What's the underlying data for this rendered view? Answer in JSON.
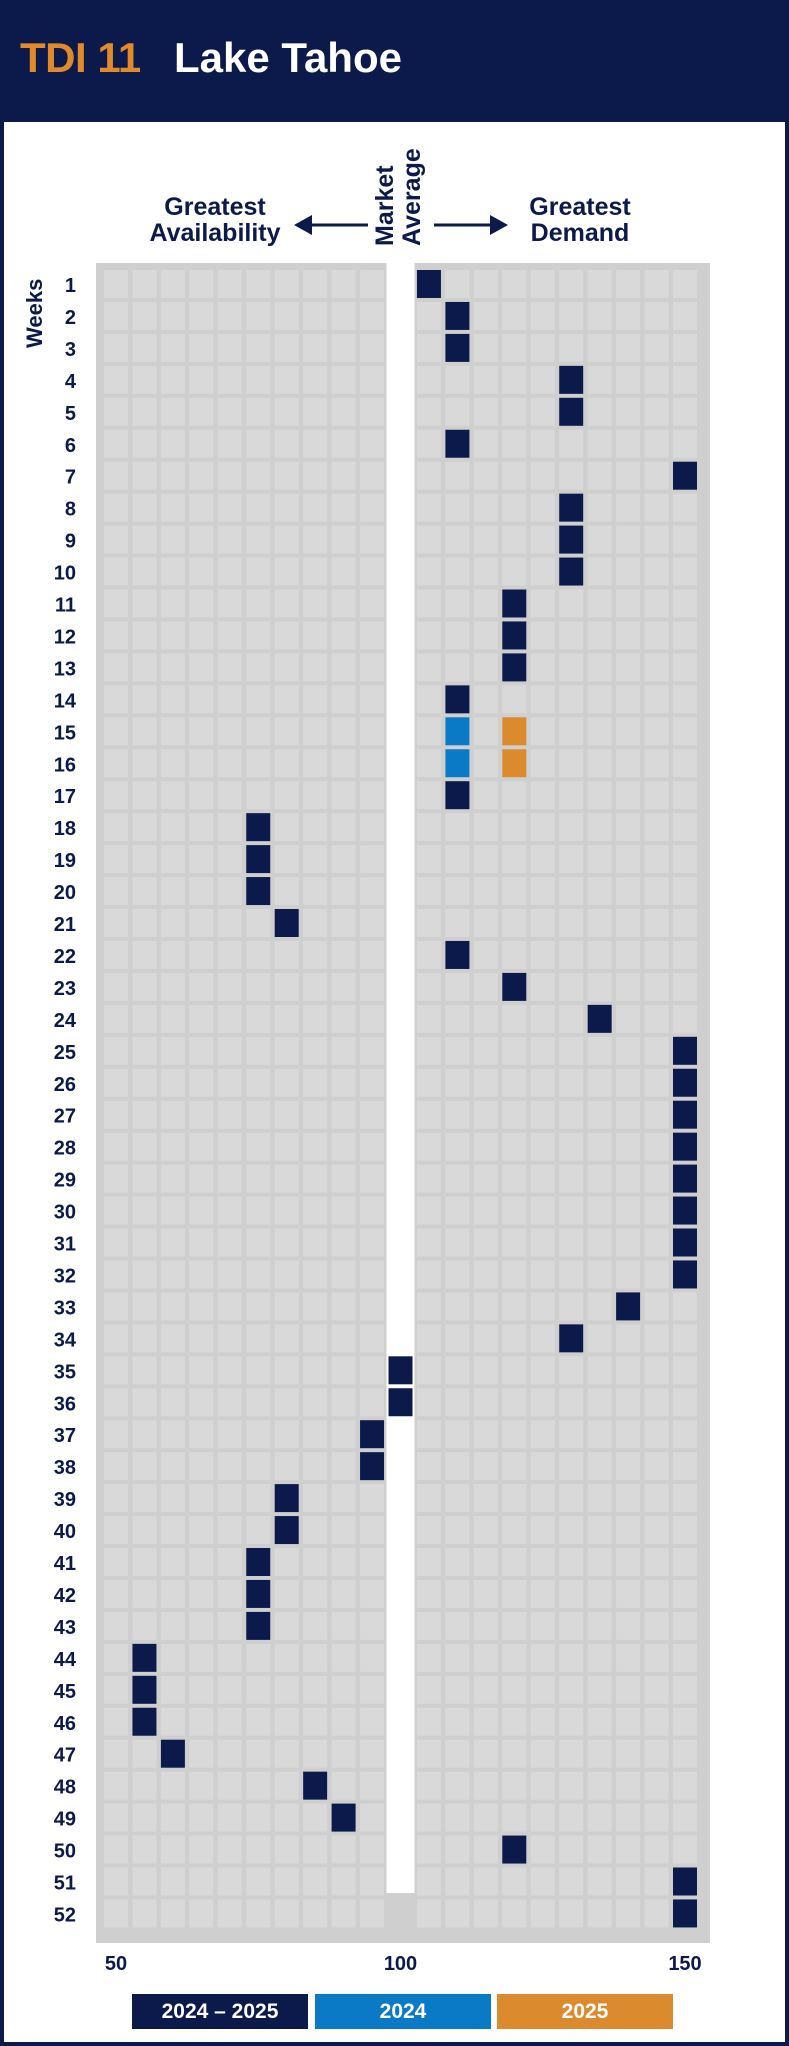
{
  "header": {
    "code": "TDI 11",
    "title": "Lake Tahoe"
  },
  "labels": {
    "left": "Greatest Availability",
    "middle_line1": "Market",
    "middle_line2": "Average",
    "right": "Greatest Demand",
    "weeks": "Weeks"
  },
  "colors": {
    "navy": "#0b1a4a",
    "blue": "#0a7ac7",
    "orange": "#db8a2d",
    "cell": "#d9d9d9",
    "panel": "#cfcfcf"
  },
  "chart_data": {
    "type": "scatter",
    "title": "Lake Tahoe",
    "xlim": [
      50,
      150
    ],
    "xticks": [
      50,
      100,
      150
    ],
    "ylabel": "Weeks",
    "weeks": [
      1,
      2,
      3,
      4,
      5,
      6,
      7,
      8,
      9,
      10,
      11,
      12,
      13,
      14,
      15,
      16,
      17,
      18,
      19,
      20,
      21,
      22,
      23,
      24,
      25,
      26,
      27,
      28,
      29,
      30,
      31,
      32,
      33,
      34,
      35,
      36,
      37,
      38,
      39,
      40,
      41,
      42,
      43,
      44,
      45,
      46,
      47,
      48,
      49,
      50,
      51,
      52
    ],
    "series": [
      {
        "name": "2024 – 2025",
        "color": "#0b1a4a",
        "values": [
          105,
          110,
          110,
          130,
          130,
          110,
          150,
          130,
          130,
          130,
          120,
          120,
          120,
          110,
          null,
          null,
          110,
          75,
          75,
          75,
          80,
          110,
          120,
          135,
          150,
          150,
          150,
          150,
          150,
          150,
          150,
          150,
          140,
          130,
          100,
          100,
          95,
          95,
          80,
          80,
          75,
          75,
          75,
          55,
          55,
          55,
          60,
          85,
          90,
          120,
          150,
          150
        ]
      },
      {
        "name": "2024",
        "color": "#0a7ac7",
        "points": [
          {
            "week": 15,
            "value": 110
          },
          {
            "week": 16,
            "value": 110
          }
        ]
      },
      {
        "name": "2025",
        "color": "#db8a2d",
        "points": [
          {
            "week": 15,
            "value": 120
          },
          {
            "week": 16,
            "value": 120
          }
        ]
      }
    ]
  }
}
